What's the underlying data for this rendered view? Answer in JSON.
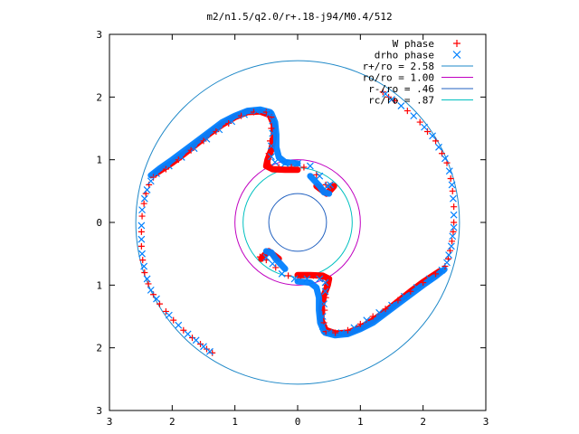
{
  "chart_data": {
    "type": "scatter",
    "title": "m2/n1.5/q2.0/r+.18-j94/M0.4/512",
    "xlabel": "",
    "ylabel": "",
    "xlim": [
      -3,
      3
    ],
    "ylim": [
      -3,
      3
    ],
    "x_ticks": [
      -3,
      -2,
      -1,
      0,
      1,
      2,
      3
    ],
    "y_ticks": [
      -3,
      -2,
      -1,
      0,
      1,
      2,
      3
    ],
    "x_tick_labels": [
      "3",
      "2",
      "1",
      "0",
      "1",
      "2",
      "3"
    ],
    "y_tick_labels": [
      "3",
      "2",
      "1",
      "0",
      "1",
      "2",
      "3"
    ],
    "grid": false,
    "legend_position": "top-right",
    "legend": [
      {
        "label": "W phase",
        "symbol": "+",
        "color": "#ff0000"
      },
      {
        "label": "drho phase",
        "symbol": "x",
        "color": "#0080ff"
      },
      {
        "label": "r+/ro = 2.58",
        "symbol": "line",
        "color": "#1e88c8"
      },
      {
        "label": "ro/ro = 1.00",
        "symbol": "line",
        "color": "#c000c0"
      },
      {
        "label": "r-/ro = .46",
        "symbol": "line",
        "color": "#2060c0"
      },
      {
        "label": "rc/ro = .87",
        "symbol": "line",
        "color": "#00c0c0"
      }
    ],
    "circles": [
      {
        "name": "r+/ro = 2.58",
        "r": 2.58,
        "color": "#1e88c8"
      },
      {
        "name": "ro/ro = 1.00",
        "r": 1.0,
        "color": "#c000c0"
      },
      {
        "name": "r-/ro = .46",
        "r": 0.46,
        "color": "#2060c0"
      },
      {
        "name": "rc/ro = .87",
        "r": 0.87,
        "color": "#00c0c0"
      }
    ],
    "series": [
      {
        "name": "W phase",
        "marker": "+",
        "color": "#ff0000",
        "points": [
          [
            -1.36,
            -2.08
          ],
          [
            -1.45,
            -2.02
          ],
          [
            -1.55,
            -1.94
          ],
          [
            -1.68,
            -1.84
          ],
          [
            -1.82,
            -1.72
          ],
          [
            -1.98,
            -1.56
          ],
          [
            -2.1,
            -1.42
          ],
          [
            -2.2,
            -1.3
          ],
          [
            -2.3,
            -1.15
          ],
          [
            -2.38,
            -0.98
          ],
          [
            -2.44,
            -0.8
          ],
          [
            -2.47,
            -0.6
          ],
          [
            -2.49,
            -0.38
          ],
          [
            -2.49,
            -0.15
          ],
          [
            -2.48,
            0.1
          ],
          [
            -2.45,
            0.3
          ],
          [
            -2.42,
            0.46
          ],
          [
            -2.37,
            0.6
          ],
          [
            -2.3,
            0.72
          ],
          [
            -2.1,
            0.85
          ],
          [
            -1.9,
            1.0
          ],
          [
            -1.7,
            1.15
          ],
          [
            -1.5,
            1.3
          ],
          [
            -1.3,
            1.45
          ],
          [
            -1.1,
            1.58
          ],
          [
            -0.9,
            1.7
          ],
          [
            -0.7,
            1.76
          ],
          [
            -0.5,
            1.76
          ],
          [
            -0.42,
            1.68
          ],
          [
            -0.42,
            1.5
          ],
          [
            -0.44,
            1.3
          ],
          [
            -0.46,
            1.1
          ],
          [
            -0.44,
            0.92
          ],
          [
            -0.3,
            0.88
          ],
          [
            -0.1,
            0.88
          ],
          [
            0.1,
            0.88
          ],
          [
            0.3,
            0.76
          ],
          [
            0.45,
            0.6
          ],
          [
            0.52,
            0.55
          ],
          [
            0.55,
            0.6
          ],
          [
            1.36,
            2.08
          ],
          [
            1.45,
            2.0
          ],
          [
            1.55,
            1.94
          ],
          [
            1.75,
            1.78
          ],
          [
            1.95,
            1.6
          ],
          [
            2.07,
            1.45
          ],
          [
            2.2,
            1.3
          ],
          [
            2.3,
            1.1
          ],
          [
            2.38,
            0.95
          ],
          [
            2.44,
            0.7
          ],
          [
            2.47,
            0.5
          ],
          [
            2.49,
            0.25
          ],
          [
            2.49,
            0.0
          ],
          [
            2.48,
            -0.15
          ],
          [
            2.46,
            -0.3
          ],
          [
            2.43,
            -0.45
          ],
          [
            2.4,
            -0.58
          ],
          [
            2.35,
            -0.7
          ],
          [
            2.2,
            -0.82
          ],
          [
            2.0,
            -0.96
          ],
          [
            1.8,
            -1.1
          ],
          [
            1.6,
            -1.24
          ],
          [
            1.4,
            -1.38
          ],
          [
            1.2,
            -1.5
          ],
          [
            1.0,
            -1.62
          ],
          [
            0.8,
            -1.72
          ],
          [
            0.6,
            -1.76
          ],
          [
            0.45,
            -1.74
          ],
          [
            0.42,
            -1.6
          ],
          [
            0.43,
            -1.4
          ],
          [
            0.45,
            -1.2
          ],
          [
            0.46,
            -1.0
          ],
          [
            0.4,
            -0.9
          ],
          [
            0.25,
            -0.85
          ],
          [
            0.05,
            -0.85
          ],
          [
            -0.15,
            -0.85
          ],
          [
            -0.35,
            -0.72
          ],
          [
            -0.5,
            -0.6
          ],
          [
            -0.55,
            -0.55
          ],
          [
            -0.6,
            -0.55
          ]
        ]
      },
      {
        "name": "drho phase",
        "marker": "x",
        "color": "#0080ff",
        "points": [
          [
            -1.4,
            -2.06
          ],
          [
            -1.5,
            -1.98
          ],
          [
            -1.62,
            -1.88
          ],
          [
            -1.75,
            -1.78
          ],
          [
            -1.9,
            -1.64
          ],
          [
            -2.05,
            -1.48
          ],
          [
            -2.25,
            -1.22
          ],
          [
            -2.34,
            -1.08
          ],
          [
            -2.4,
            -0.9
          ],
          [
            -2.45,
            -0.7
          ],
          [
            -2.48,
            -0.5
          ],
          [
            -2.49,
            -0.27
          ],
          [
            -2.49,
            -0.05
          ],
          [
            -2.48,
            0.2
          ],
          [
            -2.44,
            0.38
          ],
          [
            -2.4,
            0.52
          ],
          [
            -2.34,
            0.66
          ],
          [
            -2.25,
            0.78
          ],
          [
            -2.05,
            0.9
          ],
          [
            -1.85,
            1.04
          ],
          [
            -1.65,
            1.18
          ],
          [
            -1.45,
            1.33
          ],
          [
            -1.25,
            1.48
          ],
          [
            -1.05,
            1.61
          ],
          [
            -0.85,
            1.72
          ],
          [
            -0.65,
            1.78
          ],
          [
            -0.45,
            1.74
          ],
          [
            -0.4,
            1.62
          ],
          [
            -0.4,
            1.42
          ],
          [
            -0.42,
            1.22
          ],
          [
            -0.42,
            1.05
          ],
          [
            -0.36,
            0.96
          ],
          [
            -0.2,
            0.94
          ],
          [
            0.0,
            0.94
          ],
          [
            0.2,
            0.9
          ],
          [
            0.35,
            0.74
          ],
          [
            0.48,
            0.58
          ],
          [
            0.52,
            0.6
          ],
          [
            1.4,
            2.05
          ],
          [
            1.5,
            1.96
          ],
          [
            1.65,
            1.86
          ],
          [
            1.85,
            1.7
          ],
          [
            2.02,
            1.52
          ],
          [
            2.15,
            1.38
          ],
          [
            2.25,
            1.2
          ],
          [
            2.35,
            1.02
          ],
          [
            2.42,
            0.82
          ],
          [
            2.46,
            0.6
          ],
          [
            2.48,
            0.38
          ],
          [
            2.49,
            0.12
          ],
          [
            2.49,
            -0.08
          ],
          [
            2.47,
            -0.22
          ],
          [
            2.45,
            -0.38
          ],
          [
            2.41,
            -0.52
          ],
          [
            2.38,
            -0.64
          ],
          [
            2.3,
            -0.76
          ],
          [
            2.1,
            -0.9
          ],
          [
            1.9,
            -1.04
          ],
          [
            1.7,
            -1.18
          ],
          [
            1.5,
            -1.32
          ],
          [
            1.3,
            -1.44
          ],
          [
            1.1,
            -1.56
          ],
          [
            0.9,
            -1.68
          ],
          [
            0.7,
            -1.76
          ],
          [
            0.5,
            -1.76
          ],
          [
            0.4,
            -1.66
          ],
          [
            0.4,
            -1.5
          ],
          [
            0.42,
            -1.3
          ],
          [
            0.44,
            -1.1
          ],
          [
            0.44,
            -0.96
          ],
          [
            0.35,
            -0.9
          ],
          [
            0.15,
            -0.9
          ],
          [
            -0.05,
            -0.9
          ],
          [
            -0.25,
            -0.82
          ],
          [
            -0.4,
            -0.66
          ],
          [
            -0.5,
            -0.56
          ]
        ]
      }
    ],
    "dense_bands": {
      "W phase": [
        [
          [
            -2.26,
            0.78
          ],
          [
            -2.2,
            0.82
          ],
          [
            -2.0,
            0.95
          ],
          [
            -1.8,
            1.1
          ],
          [
            -1.6,
            1.26
          ],
          [
            -1.4,
            1.42
          ],
          [
            -1.2,
            1.56
          ],
          [
            -1.0,
            1.68
          ],
          [
            -0.8,
            1.76
          ],
          [
            -0.6,
            1.77
          ],
          [
            -0.46,
            1.72
          ]
        ],
        [
          [
            -0.44,
            1.7
          ],
          [
            -0.38,
            1.56
          ],
          [
            -0.38,
            1.36
          ],
          [
            -0.42,
            1.16
          ],
          [
            -0.48,
            1.0
          ],
          [
            -0.5,
            0.9
          ],
          [
            -0.4,
            0.85
          ],
          [
            -0.2,
            0.84
          ],
          [
            0.0,
            0.84
          ]
        ],
        [
          [
            0.3,
            0.58
          ],
          [
            0.38,
            0.52
          ],
          [
            0.46,
            0.46
          ],
          [
            0.53,
            0.52
          ],
          [
            0.58,
            0.58
          ]
        ],
        [
          [
            2.26,
            -0.78
          ],
          [
            2.2,
            -0.82
          ],
          [
            2.0,
            -0.95
          ],
          [
            1.8,
            -1.1
          ],
          [
            1.6,
            -1.26
          ],
          [
            1.4,
            -1.42
          ],
          [
            1.2,
            -1.56
          ],
          [
            1.0,
            -1.68
          ],
          [
            0.8,
            -1.76
          ],
          [
            0.6,
            -1.77
          ],
          [
            0.46,
            -1.72
          ]
        ],
        [
          [
            0.44,
            -1.7
          ],
          [
            0.38,
            -1.56
          ],
          [
            0.38,
            -1.36
          ],
          [
            0.42,
            -1.16
          ],
          [
            0.48,
            -1.0
          ],
          [
            0.5,
            -0.9
          ],
          [
            0.4,
            -0.85
          ],
          [
            0.2,
            -0.84
          ],
          [
            0.0,
            -0.84
          ]
        ],
        [
          [
            -0.3,
            -0.58
          ],
          [
            -0.38,
            -0.52
          ],
          [
            -0.46,
            -0.46
          ],
          [
            -0.53,
            -0.52
          ],
          [
            -0.58,
            -0.58
          ]
        ]
      ],
      "drho phase": [
        [
          [
            -2.34,
            0.75
          ],
          [
            -2.2,
            0.86
          ],
          [
            -2.0,
            1.0
          ],
          [
            -1.8,
            1.15
          ],
          [
            -1.6,
            1.3
          ],
          [
            -1.4,
            1.45
          ],
          [
            -1.2,
            1.6
          ],
          [
            -1.0,
            1.7
          ],
          [
            -0.8,
            1.78
          ],
          [
            -0.6,
            1.8
          ],
          [
            -0.44,
            1.76
          ]
        ],
        [
          [
            -0.42,
            1.74
          ],
          [
            -0.36,
            1.6
          ],
          [
            -0.34,
            1.4
          ],
          [
            -0.34,
            1.2
          ],
          [
            -0.3,
            1.04
          ],
          [
            -0.2,
            0.96
          ],
          [
            0.0,
            0.94
          ]
        ],
        [
          [
            0.2,
            0.74
          ],
          [
            0.35,
            0.58
          ],
          [
            0.42,
            0.48
          ],
          [
            0.5,
            0.46
          ]
        ],
        [
          [
            2.34,
            -0.75
          ],
          [
            2.2,
            -0.86
          ],
          [
            2.0,
            -1.0
          ],
          [
            1.8,
            -1.15
          ],
          [
            1.6,
            -1.3
          ],
          [
            1.4,
            -1.45
          ],
          [
            1.2,
            -1.6
          ],
          [
            1.0,
            -1.7
          ],
          [
            0.8,
            -1.78
          ],
          [
            0.6,
            -1.8
          ],
          [
            0.44,
            -1.76
          ]
        ],
        [
          [
            0.42,
            -1.74
          ],
          [
            0.36,
            -1.6
          ],
          [
            0.34,
            -1.4
          ],
          [
            0.34,
            -1.2
          ],
          [
            0.3,
            -1.04
          ],
          [
            0.2,
            -0.96
          ],
          [
            0.0,
            -0.94
          ]
        ],
        [
          [
            -0.2,
            -0.74
          ],
          [
            -0.35,
            -0.58
          ],
          [
            -0.42,
            -0.48
          ],
          [
            -0.5,
            -0.46
          ]
        ]
      ]
    }
  }
}
